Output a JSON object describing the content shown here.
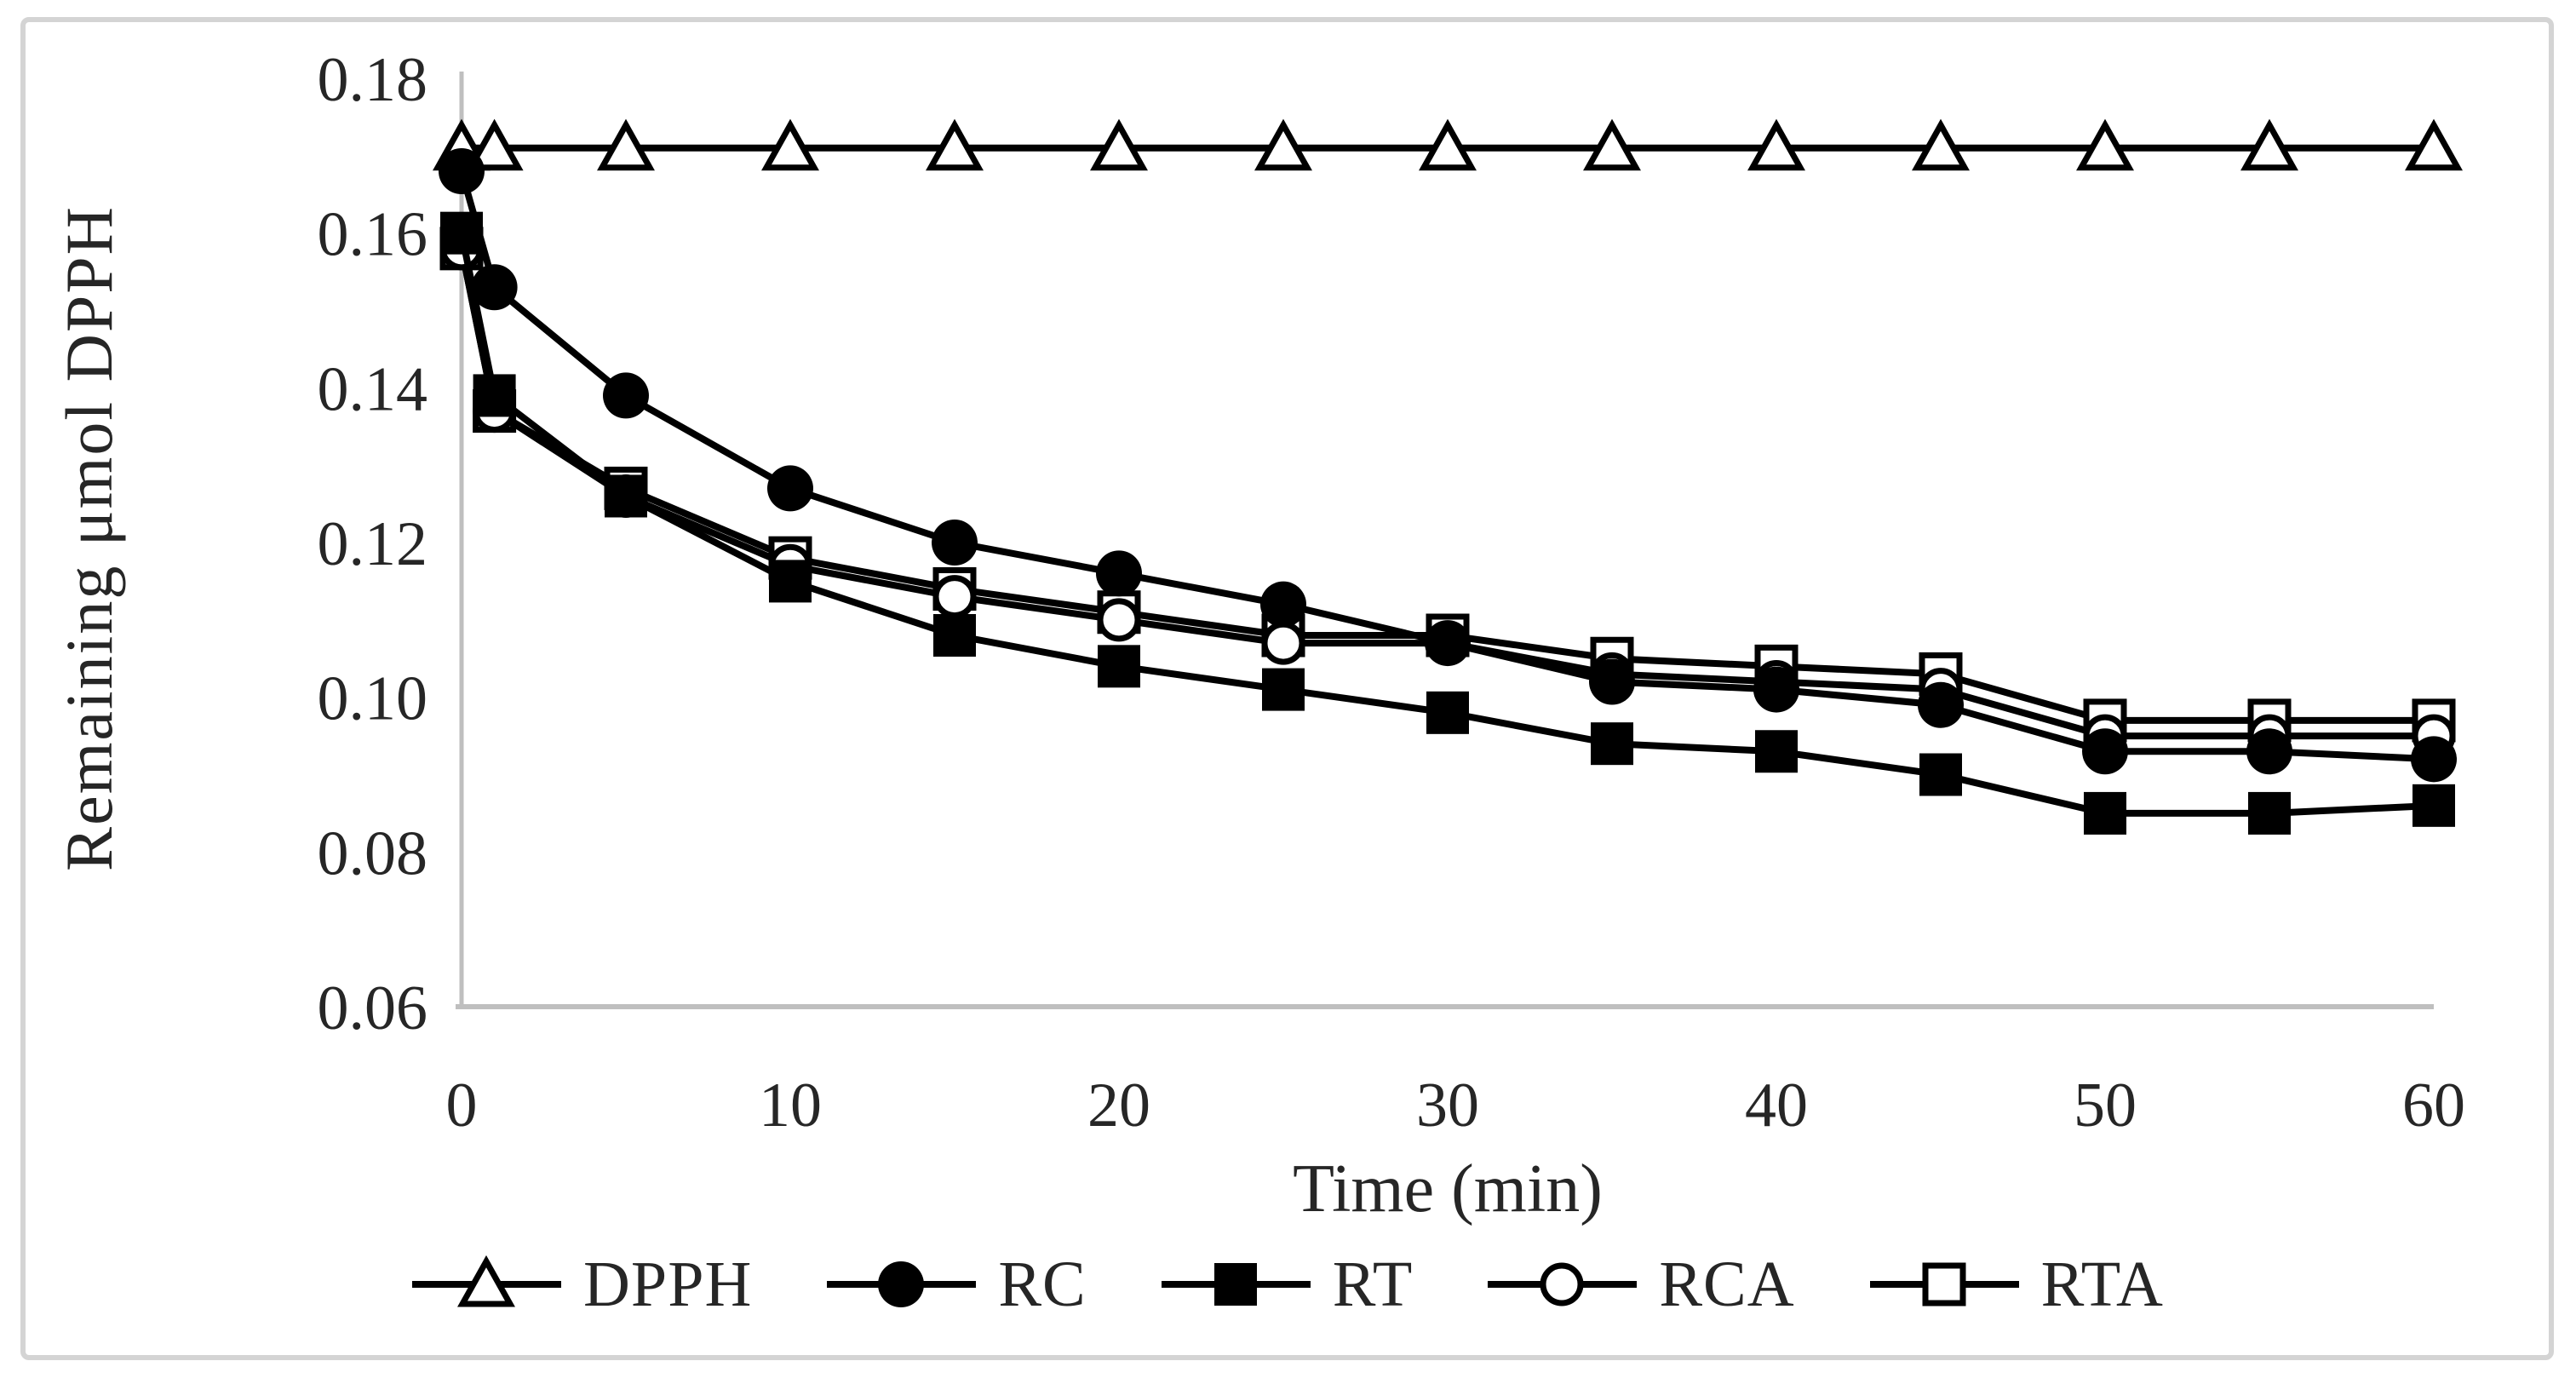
{
  "figure": {
    "background": "#ffffff",
    "border_color": "#d4d4d4",
    "axis_color": "#bfbfbf",
    "series_color": "#000000"
  },
  "chart_data": {
    "type": "line",
    "title": "",
    "xlabel": "Time (min)",
    "ylabel": "Remaining μmol DPPH",
    "xlim": [
      0,
      60
    ],
    "ylim": [
      0.06,
      0.18
    ],
    "grid": false,
    "legend_position": "bottom",
    "x_ticks": [
      "0",
      "10",
      "20",
      "30",
      "40",
      "50",
      "60"
    ],
    "y_ticks": [
      "0.18",
      "0.16",
      "0.14",
      "0.12",
      "0.10",
      "0.08",
      "0.06"
    ],
    "x": [
      0,
      1,
      5,
      10,
      15,
      20,
      25,
      30,
      35,
      40,
      45,
      50,
      55,
      60
    ],
    "series": [
      {
        "name": "DPPH",
        "marker": "open-triangle",
        "values": [
          0.171,
          0.171,
          0.171,
          0.171,
          0.171,
          0.171,
          0.171,
          0.171,
          0.171,
          0.171,
          0.171,
          0.171,
          0.171,
          0.171
        ]
      },
      {
        "name": "RC",
        "marker": "filled-circle",
        "values": [
          0.168,
          0.153,
          0.139,
          0.127,
          0.12,
          0.116,
          0.112,
          0.107,
          0.102,
          0.101,
          0.099,
          0.093,
          0.093,
          0.092
        ]
      },
      {
        "name": "RT",
        "marker": "filled-square",
        "values": [
          0.16,
          0.139,
          0.126,
          0.115,
          0.108,
          0.104,
          0.101,
          0.098,
          0.094,
          0.093,
          0.09,
          0.085,
          0.085,
          0.086
        ]
      },
      {
        "name": "RCA",
        "marker": "open-circle",
        "values": [
          0.158,
          0.137,
          0.126,
          0.117,
          0.113,
          0.11,
          0.107,
          0.107,
          0.103,
          0.102,
          0.101,
          0.095,
          0.095,
          0.095
        ]
      },
      {
        "name": "RTA",
        "marker": "open-square",
        "values": [
          0.158,
          0.137,
          0.127,
          0.118,
          0.114,
          0.111,
          0.108,
          0.108,
          0.105,
          0.104,
          0.103,
          0.097,
          0.097,
          0.097
        ]
      }
    ]
  },
  "legend": {
    "items": [
      {
        "label": "DPPH",
        "marker": "open-triangle"
      },
      {
        "label": "RC",
        "marker": "filled-circle"
      },
      {
        "label": "RT",
        "marker": "filled-square"
      },
      {
        "label": "RCA",
        "marker": "open-circle"
      },
      {
        "label": "RTA",
        "marker": "open-square"
      }
    ]
  }
}
